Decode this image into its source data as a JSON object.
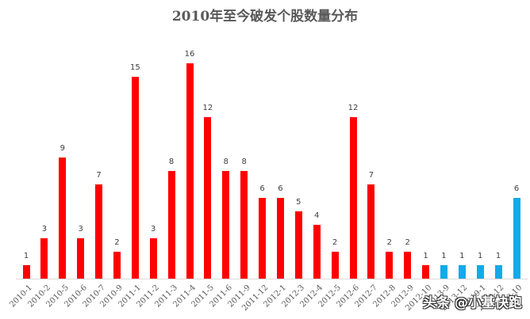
{
  "chart_data": {
    "type": "bar",
    "title": "2010年至今破发个股数量分布",
    "xlabel": "",
    "ylabel": "",
    "ylim": [
      0,
      16
    ],
    "grid": false,
    "legend": null,
    "categories": [
      "2010-1",
      "2010-2",
      "2010-5",
      "2010-6",
      "2010-7",
      "2010-9",
      "2011-1",
      "2011-2",
      "2011-3",
      "2011-4",
      "2011-5",
      "2011-6",
      "2011-9",
      "2011-12",
      "2012-1",
      "2012-3",
      "2012-4",
      "2012-5",
      "2012-6",
      "2012-7",
      "2012-8",
      "2012-9",
      "2012-10",
      "2013-9",
      "2013-12",
      "2019-1",
      "2019-12",
      "2020-10"
    ],
    "values": [
      1,
      3,
      9,
      3,
      7,
      2,
      15,
      3,
      8,
      16,
      12,
      8,
      8,
      6,
      6,
      5,
      4,
      2,
      12,
      7,
      2,
      2,
      1,
      1,
      1,
      1,
      1,
      6
    ],
    "bar_colors": [
      "#ff0000",
      "#ff0000",
      "#ff0000",
      "#ff0000",
      "#ff0000",
      "#ff0000",
      "#ff0000",
      "#ff0000",
      "#ff0000",
      "#ff0000",
      "#ff0000",
      "#ff0000",
      "#ff0000",
      "#ff0000",
      "#ff0000",
      "#ff0000",
      "#ff0000",
      "#ff0000",
      "#ff0000",
      "#ff0000",
      "#ff0000",
      "#ff0000",
      "#ff0000",
      "#11aaea",
      "#11aaea",
      "#11aaea",
      "#11aaea",
      "#11aaea"
    ],
    "data_labels": true
  },
  "colors": {
    "primary": "#ff0000",
    "recent": "#11aaea"
  },
  "watermark": "头条 @小基快跑"
}
